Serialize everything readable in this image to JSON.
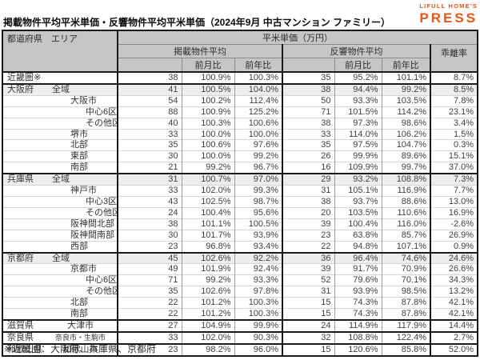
{
  "title": "掲載物件平均平米単価・反響物件平均平米単価（2024年9月 中古マンション ファミリー）",
  "logo": {
    "top": "LIFULL HOME'S",
    "bottom": "PRESS"
  },
  "colors": {
    "brand_orange": "#ea5514",
    "header_bg": "#c6c6c6",
    "shaded_row_bg": "#ededed",
    "grid_line": "#9e9e9e",
    "thick_border": "#1a1a1a"
  },
  "table": {
    "header": {
      "pref_area": "都道府県　エリア",
      "unit_group": "平米単価（万円）",
      "listed_group": "掲載物件平均",
      "response_group": "反響物件平均",
      "gap": "乖離率",
      "mom": "前月比",
      "yoy": "前年比"
    },
    "rows": [
      {
        "pref": "近畿圏※",
        "area": "",
        "indent": 0,
        "listed": "38",
        "listed_mom": "100.9%",
        "listed_yoy": "100.3%",
        "resp": "35",
        "resp_mom": "95.2%",
        "resp_yoy": "101.1%",
        "gap": "8.7%",
        "thick_top": true
      },
      {
        "pref": "大阪府",
        "area": "全域",
        "indent": 1,
        "listed": "41",
        "listed_mom": "100.5%",
        "listed_yoy": "104.0%",
        "resp": "38",
        "resp_mom": "94.4%",
        "resp_yoy": "99.2%",
        "gap": "8.5%",
        "shaded": true,
        "thick_top": true
      },
      {
        "pref": "",
        "area": "大阪市",
        "indent": 2,
        "listed": "54",
        "listed_mom": "100.2%",
        "listed_yoy": "112.4%",
        "resp": "50",
        "resp_mom": "93.3%",
        "resp_yoy": "103.5%",
        "gap": "7.8%"
      },
      {
        "pref": "",
        "area": "中心6区",
        "indent": 3,
        "listed": "88",
        "listed_mom": "100.9%",
        "listed_yoy": "125.2%",
        "resp": "71",
        "resp_mom": "101.5%",
        "resp_yoy": "114.2%",
        "gap": "23.1%"
      },
      {
        "pref": "",
        "area": "その他区",
        "indent": 3,
        "listed": "40",
        "listed_mom": "100.3%",
        "listed_yoy": "100.6%",
        "resp": "38",
        "resp_mom": "97.3%",
        "resp_yoy": "98.6%",
        "gap": "3.4%"
      },
      {
        "pref": "",
        "area": "堺市",
        "indent": 2,
        "listed": "33",
        "listed_mom": "100.0%",
        "listed_yoy": "100.0%",
        "resp": "33",
        "resp_mom": "114.0%",
        "resp_yoy": "106.2%",
        "gap": "1.5%"
      },
      {
        "pref": "",
        "area": "北部",
        "indent": 2,
        "listed": "35",
        "listed_mom": "100.6%",
        "listed_yoy": "97.6%",
        "resp": "35",
        "resp_mom": "97.5%",
        "resp_yoy": "104.7%",
        "gap": "0.3%"
      },
      {
        "pref": "",
        "area": "東部",
        "indent": 2,
        "listed": "30",
        "listed_mom": "100.0%",
        "listed_yoy": "99.2%",
        "resp": "26",
        "resp_mom": "99.9%",
        "resp_yoy": "89.6%",
        "gap": "15.1%"
      },
      {
        "pref": "",
        "area": "南部",
        "indent": 2,
        "listed": "21",
        "listed_mom": "99.2%",
        "listed_yoy": "96.7%",
        "resp": "16",
        "resp_mom": "109.9%",
        "resp_yoy": "99.7%",
        "gap": "37.0%"
      },
      {
        "pref": "兵庫県",
        "area": "全域",
        "indent": 1,
        "listed": "31",
        "listed_mom": "100.7%",
        "listed_yoy": "97.0%",
        "resp": "29",
        "resp_mom": "93.2%",
        "resp_yoy": "108.8%",
        "gap": "7.3%",
        "shaded": true,
        "thick_top": true
      },
      {
        "pref": "",
        "area": "神戸市",
        "indent": 2,
        "listed": "33",
        "listed_mom": "102.0%",
        "listed_yoy": "99.3%",
        "resp": "31",
        "resp_mom": "105.1%",
        "resp_yoy": "116.9%",
        "gap": "7.7%"
      },
      {
        "pref": "",
        "area": "中心3区",
        "indent": 3,
        "listed": "43",
        "listed_mom": "102.5%",
        "listed_yoy": "98.7%",
        "resp": "38",
        "resp_mom": "93.7%",
        "resp_yoy": "88.6%",
        "gap": "13.0%"
      },
      {
        "pref": "",
        "area": "その他区",
        "indent": 3,
        "listed": "24",
        "listed_mom": "100.4%",
        "listed_yoy": "95.6%",
        "resp": "20",
        "resp_mom": "103.5%",
        "resp_yoy": "110.6%",
        "gap": "16.9%"
      },
      {
        "pref": "",
        "area": "阪神間北部",
        "indent": 2,
        "listed": "38",
        "listed_mom": "101.1%",
        "listed_yoy": "100.5%",
        "resp": "39",
        "resp_mom": "100.4%",
        "resp_yoy": "116.0%",
        "gap": "-2.6%"
      },
      {
        "pref": "",
        "area": "阪神間南部",
        "indent": 2,
        "listed": "30",
        "listed_mom": "101.7%",
        "listed_yoy": "93.9%",
        "resp": "23",
        "resp_mom": "63.8%",
        "resp_yoy": "85.7%",
        "gap": "26.9%"
      },
      {
        "pref": "",
        "area": "西部",
        "indent": 2,
        "listed": "23",
        "listed_mom": "96.8%",
        "listed_yoy": "93.4%",
        "resp": "22",
        "resp_mom": "94.8%",
        "resp_yoy": "107.1%",
        "gap": "0.9%"
      },
      {
        "pref": "京都府",
        "area": "全域",
        "indent": 1,
        "listed": "45",
        "listed_mom": "102.6%",
        "listed_yoy": "92.2%",
        "resp": "36",
        "resp_mom": "96.4%",
        "resp_yoy": "74.6%",
        "gap": "24.6%",
        "shaded": true,
        "thick_top": true
      },
      {
        "pref": "",
        "area": "京都市",
        "indent": 2,
        "listed": "49",
        "listed_mom": "101.9%",
        "listed_yoy": "92.4%",
        "resp": "39",
        "resp_mom": "91.7%",
        "resp_yoy": "70.9%",
        "gap": "26.6%"
      },
      {
        "pref": "",
        "area": "中心6区",
        "indent": 3,
        "listed": "71",
        "listed_mom": "99.2%",
        "listed_yoy": "93.3%",
        "resp": "52",
        "resp_mom": "79.6%",
        "resp_yoy": "70.1%",
        "gap": "34.3%"
      },
      {
        "pref": "",
        "area": "その他区",
        "indent": 3,
        "listed": "35",
        "listed_mom": "102.6%",
        "listed_yoy": "97.8%",
        "resp": "31",
        "resp_mom": "93.9%",
        "resp_yoy": "98.5%",
        "gap": "13.2%"
      },
      {
        "pref": "",
        "area": "北部",
        "indent": 2,
        "listed": "22",
        "listed_mom": "101.2%",
        "listed_yoy": "100.3%",
        "resp": "15",
        "resp_mom": "74.3%",
        "resp_yoy": "87.8%",
        "gap": "42.1%"
      },
      {
        "pref": "",
        "area": "南部",
        "indent": 2,
        "listed": "22",
        "listed_mom": "101.2%",
        "listed_yoy": "100.3%",
        "resp": "15",
        "resp_mom": "74.3%",
        "resp_yoy": "87.8%",
        "gap": "42.1%"
      },
      {
        "pref": "滋賀県",
        "area": "大津市",
        "center": true,
        "listed": "27",
        "listed_mom": "104.9%",
        "listed_yoy": "99.9%",
        "resp": "24",
        "resp_mom": "114.9%",
        "resp_yoy": "117.9%",
        "gap": "14.4%",
        "thick_top": true
      },
      {
        "pref": "奈良県",
        "area": "奈良市・生駒市",
        "center": true,
        "small": true,
        "listed": "33",
        "listed_mom": "102.0%",
        "listed_yoy": "90.3%",
        "resp": "32",
        "resp_mom": "108.8%",
        "resp_yoy": "122.4%",
        "gap": "2.7%",
        "thick_top": true
      },
      {
        "pref": "和歌山県",
        "area": "和歌山市",
        "center": true,
        "listed": "23",
        "listed_mom": "98.2%",
        "listed_yoy": "96.0%",
        "resp": "15",
        "resp_mom": "120.6%",
        "resp_yoy": "85.8%",
        "gap": "52.0%",
        "thick_top": true
      }
    ]
  },
  "footnote": "※近畿圏：大阪府、兵庫県、京都府",
  "chart_data": {
    "type": "table",
    "title": "掲載物件平均平米単価・反響物件平均平米単価（2024年9月 中古マンション ファミリー）",
    "columns": [
      "都道府県",
      "エリア",
      "掲載物件平均 平米単価(万円)",
      "掲載 前月比(%)",
      "掲載 前年比(%)",
      "反響物件平均 平米単価(万円)",
      "反響 前月比(%)",
      "反響 前年比(%)",
      "乖離率(%)"
    ],
    "rows": [
      [
        "近畿圏※",
        "",
        38,
        100.9,
        100.3,
        35,
        95.2,
        101.1,
        8.7
      ],
      [
        "大阪府",
        "全域",
        41,
        100.5,
        104.0,
        38,
        94.4,
        99.2,
        8.5
      ],
      [
        "大阪府",
        "大阪市",
        54,
        100.2,
        112.4,
        50,
        93.3,
        103.5,
        7.8
      ],
      [
        "大阪府",
        "大阪市 中心6区",
        88,
        100.9,
        125.2,
        71,
        101.5,
        114.2,
        23.1
      ],
      [
        "大阪府",
        "大阪市 その他区",
        40,
        100.3,
        100.6,
        38,
        97.3,
        98.6,
        3.4
      ],
      [
        "大阪府",
        "堺市",
        33,
        100.0,
        100.0,
        33,
        114.0,
        106.2,
        1.5
      ],
      [
        "大阪府",
        "北部",
        35,
        100.6,
        97.6,
        35,
        97.5,
        104.7,
        0.3
      ],
      [
        "大阪府",
        "東部",
        30,
        100.0,
        99.2,
        26,
        99.9,
        89.6,
        15.1
      ],
      [
        "大阪府",
        "南部",
        21,
        99.2,
        96.7,
        16,
        109.9,
        99.7,
        37.0
      ],
      [
        "兵庫県",
        "全域",
        31,
        100.7,
        97.0,
        29,
        93.2,
        108.8,
        7.3
      ],
      [
        "兵庫県",
        "神戸市",
        33,
        102.0,
        99.3,
        31,
        105.1,
        116.9,
        7.7
      ],
      [
        "兵庫県",
        "神戸市 中心3区",
        43,
        102.5,
        98.7,
        38,
        93.7,
        88.6,
        13.0
      ],
      [
        "兵庫県",
        "神戸市 その他区",
        24,
        100.4,
        95.6,
        20,
        103.5,
        110.6,
        16.9
      ],
      [
        "兵庫県",
        "阪神間北部",
        38,
        101.1,
        100.5,
        39,
        100.4,
        116.0,
        -2.6
      ],
      [
        "兵庫県",
        "阪神間南部",
        30,
        101.7,
        93.9,
        23,
        63.8,
        85.7,
        26.9
      ],
      [
        "兵庫県",
        "西部",
        23,
        96.8,
        93.4,
        22,
        94.8,
        107.1,
        0.9
      ],
      [
        "京都府",
        "全域",
        45,
        102.6,
        92.2,
        36,
        96.4,
        74.6,
        24.6
      ],
      [
        "京都府",
        "京都市",
        49,
        101.9,
        92.4,
        39,
        91.7,
        70.9,
        26.6
      ],
      [
        "京都府",
        "京都市 中心6区",
        71,
        99.2,
        93.3,
        52,
        79.6,
        70.1,
        34.3
      ],
      [
        "京都府",
        "京都市 その他区",
        35,
        102.6,
        97.8,
        31,
        93.9,
        98.5,
        13.2
      ],
      [
        "京都府",
        "北部",
        22,
        101.2,
        100.3,
        15,
        74.3,
        87.8,
        42.1
      ],
      [
        "京都府",
        "南部",
        22,
        101.2,
        100.3,
        15,
        74.3,
        87.8,
        42.1
      ],
      [
        "滋賀県",
        "大津市",
        27,
        104.9,
        99.9,
        24,
        114.9,
        117.9,
        14.4
      ],
      [
        "奈良県",
        "奈良市・生駒市",
        33,
        102.0,
        90.3,
        32,
        108.8,
        122.4,
        2.7
      ],
      [
        "和歌山県",
        "和歌山市",
        23,
        98.2,
        96.0,
        15,
        120.6,
        85.8,
        52.0
      ]
    ],
    "footnote": "※近畿圏：大阪府、兵庫県、京都府"
  }
}
